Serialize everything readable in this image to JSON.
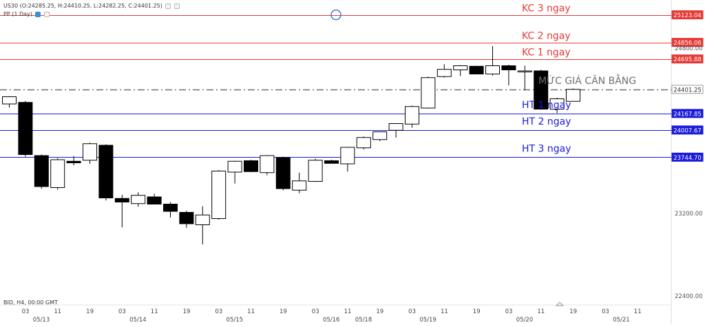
{
  "header": {
    "symbol_line": "US30 (O:24285.25, H:24410.25, L:24282.25, C:24401.25)",
    "indicator_line": "PP (1 Day)"
  },
  "footer": {
    "source_label": "BID, H4, 00:00 GMT"
  },
  "colors": {
    "resistance": "#e53935",
    "support": "#1a1adb",
    "pivot": "#707070",
    "bull_fill": "#ffffff",
    "bear_fill": "#000000",
    "marker": "#3a7bd5"
  },
  "icons": [
    "settings-icon",
    "eye-icon",
    "close-icon",
    "triangle-up-icon"
  ],
  "chart_data": {
    "type": "candlestick",
    "title": "US30 (O:24285.25, H:24410.25, L:24282.25, C:24401.25)",
    "ylim": [
      22400,
      25200
    ],
    "y_ticks": [
      22400,
      23200,
      24800
    ],
    "x_tick_labels": [
      {
        "hour": "03",
        "date": "05/13"
      },
      {
        "hour": "11",
        "date": ""
      },
      {
        "hour": "19",
        "date": ""
      },
      {
        "hour": "03",
        "date": "05/14"
      },
      {
        "hour": "11",
        "date": ""
      },
      {
        "hour": "19",
        "date": ""
      },
      {
        "hour": "03",
        "date": "05/15"
      },
      {
        "hour": "11",
        "date": ""
      },
      {
        "hour": "19",
        "date": ""
      },
      {
        "hour": "03",
        "date": "05/16"
      },
      {
        "hour": "11",
        "date": "05/18"
      },
      {
        "hour": "19",
        "date": ""
      },
      {
        "hour": "03",
        "date": "05/19"
      },
      {
        "hour": "11",
        "date": ""
      },
      {
        "hour": "19",
        "date": ""
      },
      {
        "hour": "03",
        "date": "05/20"
      },
      {
        "hour": "11",
        "date": ""
      },
      {
        "hour": "19",
        "date": ""
      },
      {
        "hour": "03",
        "date": "05/21"
      },
      {
        "hour": "11",
        "date": ""
      }
    ],
    "levels": [
      {
        "label": "KC 3 ngay",
        "value": 25123.04,
        "value_label": "25123.04",
        "kind": "resistance"
      },
      {
        "label": "KC 2 ngay",
        "value": 24856.06,
        "value_label": "24856.06",
        "kind": "resistance"
      },
      {
        "label": "KC 1 ngay",
        "value": 24695.88,
        "value_label": "24695.88",
        "kind": "resistance"
      },
      {
        "label": "MỨC GIÁ CÂN BẰNG",
        "value": 24401.25,
        "value_label": "24401.25",
        "kind": "pivot"
      },
      {
        "label": "HT 1 ngay",
        "value": 24167.85,
        "value_label": "24167.85",
        "kind": "support"
      },
      {
        "label": "HT 2 ngay",
        "value": 24007.67,
        "value_label": "24007.67",
        "kind": "support"
      },
      {
        "label": "HT 3 ngay",
        "value": 23744.7,
        "value_label": "23744.70",
        "kind": "support"
      }
    ],
    "candles": [
      {
        "o": 24260,
        "h": 24335,
        "l": 24225,
        "c": 24330
      },
      {
        "o": 24275,
        "h": 24290,
        "l": 23750,
        "c": 23770
      },
      {
        "o": 23760,
        "h": 23770,
        "l": 23440,
        "c": 23460
      },
      {
        "o": 23450,
        "h": 23735,
        "l": 23430,
        "c": 23720
      },
      {
        "o": 23705,
        "h": 23755,
        "l": 23665,
        "c": 23690
      },
      {
        "o": 23715,
        "h": 23885,
        "l": 23680,
        "c": 23875
      },
      {
        "o": 23860,
        "h": 23870,
        "l": 23325,
        "c": 23350
      },
      {
        "o": 23345,
        "h": 23380,
        "l": 23065,
        "c": 23310
      },
      {
        "o": 23295,
        "h": 23405,
        "l": 23265,
        "c": 23375
      },
      {
        "o": 23360,
        "h": 23390,
        "l": 23290,
        "c": 23290
      },
      {
        "o": 23290,
        "h": 23310,
        "l": 23160,
        "c": 23220
      },
      {
        "o": 23210,
        "h": 23225,
        "l": 23060,
        "c": 23100
      },
      {
        "o": 23090,
        "h": 23270,
        "l": 22900,
        "c": 23185
      },
      {
        "o": 23150,
        "h": 23620,
        "l": 23140,
        "c": 23610
      },
      {
        "o": 23600,
        "h": 23710,
        "l": 23490,
        "c": 23705
      },
      {
        "o": 23710,
        "h": 23720,
        "l": 23600,
        "c": 23605
      },
      {
        "o": 23595,
        "h": 23765,
        "l": 23570,
        "c": 23760
      },
      {
        "o": 23740,
        "h": 23750,
        "l": 23425,
        "c": 23440
      },
      {
        "o": 23425,
        "h": 23595,
        "l": 23395,
        "c": 23515
      },
      {
        "o": 23510,
        "h": 23730,
        "l": 23505,
        "c": 23715
      },
      {
        "o": 23710,
        "h": 23720,
        "l": 23685,
        "c": 23685
      },
      {
        "o": 23680,
        "h": 23845,
        "l": 23605,
        "c": 23840
      },
      {
        "o": 23835,
        "h": 23945,
        "l": 23820,
        "c": 23935
      },
      {
        "o": 23915,
        "h": 23990,
        "l": 23900,
        "c": 23990
      },
      {
        "o": 24005,
        "h": 24070,
        "l": 23935,
        "c": 24070
      },
      {
        "o": 24065,
        "h": 24245,
        "l": 24030,
        "c": 24235
      },
      {
        "o": 24220,
        "h": 24525,
        "l": 24215,
        "c": 24515
      },
      {
        "o": 24525,
        "h": 24645,
        "l": 24515,
        "c": 24595
      },
      {
        "o": 24590,
        "h": 24635,
        "l": 24530,
        "c": 24630
      },
      {
        "o": 24625,
        "h": 24630,
        "l": 24550,
        "c": 24550
      },
      {
        "o": 24550,
        "h": 24820,
        "l": 24535,
        "c": 24630
      },
      {
        "o": 24630,
        "h": 24640,
        "l": 24440,
        "c": 24590
      },
      {
        "o": 24580,
        "h": 24630,
        "l": 24395,
        "c": 24580
      },
      {
        "o": 24580,
        "h": 24590,
        "l": 24205,
        "c": 24210
      },
      {
        "o": 24210,
        "h": 24320,
        "l": 24170,
        "c": 24310
      },
      {
        "o": 24285.25,
        "h": 24410.25,
        "l": 24282.25,
        "c": 24401.25
      }
    ]
  }
}
